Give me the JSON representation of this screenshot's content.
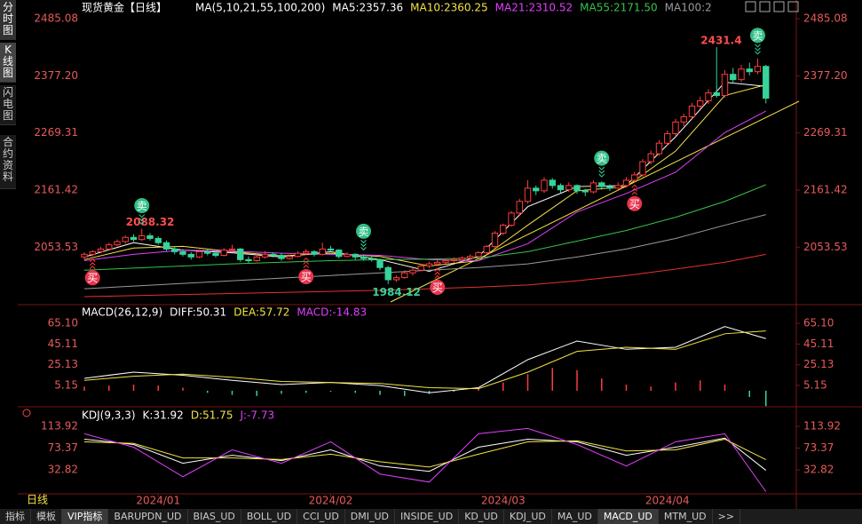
{
  "app": {
    "title": "现货黄金【日线】",
    "side_tabs": [
      "分时图",
      "K线图",
      "闪电图",
      "合约资料"
    ],
    "period": "日线",
    "bottom_tabs": [
      "指标",
      "模板",
      "VIP指标",
      "BARUPDN_UD",
      "BIAS_UD",
      "BOLL_UD",
      "CCI_UD",
      "DMI_UD",
      "INSIDE_UD",
      "KD_UD",
      "KDJ_UD",
      "MA_UD",
      "MACD_UD",
      "MTM_UD",
      ">>"
    ]
  },
  "chart_data": [
    {
      "type": "candlestick",
      "legend": "MA(5,10,21,55,100,200)",
      "up_color": "#ff3b3b",
      "down_color": "#36d39a",
      "ylim": [
        1950,
        2507
      ],
      "yticks": [
        2485.08,
        {
          "value": 2377.2,
          "label": "2377.20"
        },
        2269.31,
        2161.42,
        2053.53
      ],
      "xticks": [
        {
          "value": 9,
          "label": "2024/01"
        },
        {
          "value": 30,
          "label": "2024/02"
        },
        {
          "value": 51,
          "label": "2024/03"
        },
        {
          "value": 71,
          "label": "2024/04"
        }
      ],
      "candles": [
        [
          2035,
          2044,
          2030,
          2040
        ],
        [
          2040,
          2048,
          2036,
          2045
        ],
        [
          2045,
          2054,
          2042,
          2050
        ],
        [
          2050,
          2062,
          2048,
          2058
        ],
        [
          2058,
          2068,
          2055,
          2064
        ],
        [
          2064,
          2076,
          2060,
          2072
        ],
        [
          2072,
          2078,
          2064,
          2068
        ],
        [
          2068,
          2088.32,
          2065,
          2075
        ],
        [
          2075,
          2080,
          2066,
          2070
        ],
        [
          2070,
          2074,
          2058,
          2062
        ],
        [
          2062,
          2066,
          2046,
          2050
        ],
        [
          2050,
          2055,
          2040,
          2045
        ],
        [
          2045,
          2050,
          2036,
          2040
        ],
        [
          2040,
          2044,
          2030,
          2035
        ],
        [
          2035,
          2049,
          2033,
          2045
        ],
        [
          2045,
          2050,
          2038,
          2042
        ],
        [
          2042,
          2046,
          2034,
          2038
        ],
        [
          2038,
          2052,
          2036,
          2048
        ],
        [
          2048,
          2058,
          2044,
          2050
        ],
        [
          2050,
          2052,
          2026,
          2030
        ],
        [
          2030,
          2036,
          2024,
          2028
        ],
        [
          2028,
          2040,
          2026,
          2035
        ],
        [
          2035,
          2046,
          2032,
          2040
        ],
        [
          2040,
          2044,
          2034,
          2038
        ],
        [
          2038,
          2042,
          2028,
          2032
        ],
        [
          2032,
          2040,
          2030,
          2036
        ],
        [
          2036,
          2046,
          2034,
          2042
        ],
        [
          2042,
          2050,
          2038,
          2045
        ],
        [
          2045,
          2048,
          2036,
          2040
        ],
        [
          2040,
          2062,
          2038,
          2050
        ],
        [
          2050,
          2056,
          2044,
          2048
        ],
        [
          2048,
          2050,
          2032,
          2036
        ],
        [
          2036,
          2044,
          2034,
          2040
        ],
        [
          2040,
          2042,
          2030,
          2035
        ],
        [
          2035,
          2040,
          2028,
          2032
        ],
        [
          2032,
          2036,
          2026,
          2030
        ],
        [
          2030,
          2032,
          2010,
          2015
        ],
        [
          2015,
          2018,
          1984.12,
          1992
        ],
        [
          1992,
          2000,
          1988,
          1996
        ],
        [
          1996,
          2010,
          1994,
          2005
        ],
        [
          2005,
          2014,
          2000,
          2010
        ],
        [
          2010,
          2022,
          2008,
          2018
        ],
        [
          2018,
          2026,
          2014,
          2022
        ],
        [
          2022,
          2030,
          2018,
          2025
        ],
        [
          2025,
          2032,
          2022,
          2028
        ],
        [
          2028,
          2034,
          2024,
          2030
        ],
        [
          2030,
          2036,
          2026,
          2033
        ],
        [
          2033,
          2040,
          2030,
          2036
        ],
        [
          2036,
          2046,
          2034,
          2043
        ],
        [
          2043,
          2058,
          2040,
          2055
        ],
        [
          2055,
          2084,
          2052,
          2080
        ],
        [
          2080,
          2098,
          2076,
          2095
        ],
        [
          2095,
          2122,
          2092,
          2118
        ],
        [
          2118,
          2145,
          2114,
          2140
        ],
        [
          2140,
          2180,
          2136,
          2165
        ],
        [
          2165,
          2170,
          2152,
          2160
        ],
        [
          2160,
          2186,
          2156,
          2180
        ],
        [
          2180,
          2184,
          2164,
          2170
        ],
        [
          2170,
          2174,
          2156,
          2162
        ],
        [
          2162,
          2176,
          2158,
          2170
        ],
        [
          2170,
          2172,
          2154,
          2160
        ],
        [
          2160,
          2164,
          2150,
          2158
        ],
        [
          2158,
          2180,
          2155,
          2175
        ],
        [
          2175,
          2178,
          2162,
          2168
        ],
        [
          2168,
          2172,
          2160,
          2165
        ],
        [
          2165,
          2176,
          2162,
          2170
        ],
        [
          2170,
          2186,
          2166,
          2180
        ],
        [
          2180,
          2196,
          2176,
          2190
        ],
        [
          2190,
          2220,
          2186,
          2215
        ],
        [
          2215,
          2236,
          2210,
          2230
        ],
        [
          2230,
          2256,
          2226,
          2250
        ],
        [
          2250,
          2274,
          2246,
          2268
        ],
        [
          2268,
          2296,
          2264,
          2290
        ],
        [
          2290,
          2306,
          2282,
          2300
        ],
        [
          2300,
          2326,
          2296,
          2320
        ],
        [
          2320,
          2338,
          2314,
          2330
        ],
        [
          2330,
          2352,
          2324,
          2345
        ],
        [
          2345,
          2431.4,
          2336,
          2340
        ],
        [
          2340,
          2388,
          2336,
          2380
        ],
        [
          2380,
          2392,
          2362,
          2370
        ],
        [
          2370,
          2398,
          2366,
          2390
        ],
        [
          2390,
          2402,
          2378,
          2385
        ],
        [
          2385,
          2410,
          2380,
          2395
        ],
        [
          2395,
          2398,
          2325,
          2335
        ]
      ],
      "lines": [
        {
          "name": "MA5:2357.36",
          "color": "#ffffff",
          "x": [
            0,
            6,
            12,
            18,
            24,
            30,
            36,
            42,
            48,
            54,
            60,
            66,
            72,
            78,
            83
          ],
          "values": [
            2035,
            2062,
            2048,
            2043,
            2035,
            2045,
            2030,
            2008,
            2036,
            2130,
            2168,
            2170,
            2262,
            2365,
            2357.36
          ]
        },
        {
          "name": "MA10:2360.25",
          "color": "#f5e342",
          "x": [
            0,
            6,
            12,
            18,
            24,
            30,
            36,
            42,
            48,
            54,
            60,
            66,
            72,
            78,
            83
          ],
          "values": [
            2030,
            2052,
            2055,
            2045,
            2037,
            2042,
            2036,
            2018,
            2028,
            2095,
            2160,
            2168,
            2235,
            2340,
            2360.25
          ]
        },
        {
          "name": "MA21:2310.52",
          "color": "#e040fb",
          "x": [
            0,
            6,
            12,
            18,
            24,
            30,
            36,
            42,
            48,
            54,
            60,
            66,
            72,
            78,
            83
          ],
          "values": [
            2028,
            2040,
            2048,
            2046,
            2042,
            2040,
            2038,
            2030,
            2028,
            2060,
            2120,
            2155,
            2195,
            2270,
            2310.52
          ]
        },
        {
          "name": "MA55:2171.50",
          "color": "#36c24a",
          "x": [
            0,
            6,
            12,
            18,
            24,
            30,
            36,
            42,
            48,
            54,
            60,
            66,
            72,
            78,
            83
          ],
          "values": [
            2010,
            2014,
            2018,
            2022,
            2025,
            2028,
            2030,
            2031,
            2033,
            2045,
            2065,
            2085,
            2110,
            2140,
            2171.5
          ]
        },
        {
          "name": "MA100:2",
          "color": "#9a9a9a",
          "x": [
            0,
            6,
            12,
            18,
            24,
            30,
            36,
            42,
            48,
            54,
            60,
            66,
            72,
            78,
            83
          ],
          "values": [
            1975,
            1980,
            1985,
            1990,
            1995,
            2000,
            2005,
            2010,
            2015,
            2022,
            2035,
            2050,
            2070,
            2095,
            2115
          ]
        },
        {
          "color": "#e83030",
          "x": [
            0,
            6,
            12,
            18,
            24,
            30,
            36,
            42,
            48,
            54,
            60,
            66,
            72,
            78,
            83
          ],
          "values": [
            1960,
            1962,
            1964,
            1966,
            1968,
            1970,
            1972,
            1975,
            1978,
            1982,
            1990,
            2000,
            2012,
            2025,
            2040
          ]
        }
      ],
      "annotations": [
        {
          "value": 2088.32,
          "index": 7,
          "color": "#ff4d4d"
        },
        {
          "value": 2431.4,
          "index": 77,
          "color": "#ff4d4d"
        },
        {
          "value": 1984.12,
          "index": 37,
          "color": "#36d39a"
        }
      ],
      "signals": [
        {
          "label": "买",
          "index": 1,
          "side": "buy"
        },
        {
          "label": "卖",
          "index": 7,
          "side": "sell"
        },
        {
          "label": "买",
          "index": 27,
          "side": "buy"
        },
        {
          "label": "卖",
          "index": 34,
          "side": "sell"
        },
        {
          "label": "买",
          "index": 43,
          "side": "buy"
        },
        {
          "label": "卖",
          "index": 63,
          "side": "sell"
        },
        {
          "label": "买",
          "index": 67,
          "side": "buy"
        },
        {
          "label": "卖",
          "index": 82,
          "side": "sell"
        }
      ]
    },
    {
      "type": "macd",
      "legend": "MACD(26,12,9)",
      "ylim": [
        -14.6,
        79.7
      ],
      "yticks": [
        {
          "value": 65.1,
          "label": "65.10"
        },
        45.11,
        25.13,
        5.15
      ],
      "x": [
        0,
        6,
        12,
        18,
        24,
        30,
        36,
        42,
        48,
        54,
        60,
        66,
        72,
        78,
        83
      ],
      "series": [
        {
          "name": "DIFF:50.31",
          "color": "#ffffff",
          "values": [
            12,
            18,
            15,
            10,
            6,
            8,
            5,
            -2,
            3,
            30,
            48,
            40,
            42,
            62,
            50.31
          ]
        },
        {
          "name": "DEA:57.72",
          "color": "#f5e342",
          "values": [
            10,
            14,
            16,
            13,
            9,
            8,
            7,
            3,
            2,
            18,
            38,
            42,
            40,
            55,
            57.72
          ]
        }
      ],
      "histogram": {
        "name": "MACD:-14.83",
        "color": "#e040fb",
        "up_color": "#ff3b3b",
        "down_color": "#36d39a",
        "x": [
          0,
          3,
          6,
          9,
          12,
          15,
          18,
          21,
          24,
          27,
          30,
          33,
          36,
          39,
          42,
          45,
          48,
          51,
          54,
          57,
          60,
          63,
          66,
          69,
          72,
          75,
          78,
          81,
          83
        ],
        "values": [
          4,
          5,
          6,
          5,
          3,
          -2,
          -4,
          -5,
          -3,
          -2,
          -1,
          -2,
          -4,
          -5,
          -3,
          -1,
          2,
          8,
          16,
          22,
          20,
          12,
          6,
          4,
          8,
          10,
          6,
          -6,
          -14.83
        ]
      }
    },
    {
      "type": "kdj",
      "legend": "KDJ(9,3,3)",
      "ylim": [
        -10.2,
        143.7
      ],
      "yticks": [
        113.92,
        73.37,
        32.82
      ],
      "x": [
        0,
        6,
        12,
        18,
        24,
        30,
        36,
        42,
        48,
        54,
        60,
        66,
        72,
        78,
        83
      ],
      "series": [
        {
          "name": "K:31.92",
          "color": "#ffffff",
          "values": [
            90,
            80,
            45,
            60,
            50,
            70,
            40,
            30,
            75,
            90,
            85,
            60,
            75,
            92,
            31.92
          ]
        },
        {
          "name": "D:51.75",
          "color": "#f5e342",
          "values": [
            85,
            82,
            55,
            55,
            52,
            62,
            48,
            38,
            62,
            85,
            87,
            68,
            70,
            90,
            51.75
          ]
        },
        {
          "name": "J:-7.73",
          "color": "#e040fb",
          "values": [
            100,
            75,
            20,
            70,
            45,
            85,
            25,
            10,
            100,
            110,
            80,
            40,
            85,
            100,
            -7.73
          ]
        }
      ]
    }
  ]
}
